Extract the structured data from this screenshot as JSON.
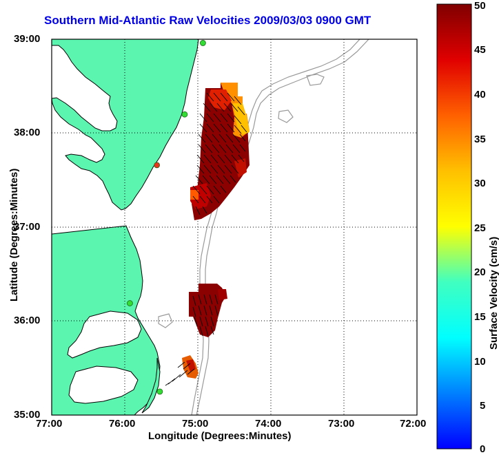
{
  "title": "Southern Mid-Atlantic Raw Velocities 2009/03/03 0900 GMT",
  "xlabel": "Longitude (Degrees:Minutes)",
  "ylabel": "Latitude (Degrees:Minutes)",
  "colorbar": {
    "label": "Surface Velocity (cm/s)",
    "min": 0,
    "max": 50,
    "ticks": [
      "0",
      "5",
      "10",
      "15",
      "20",
      "25",
      "30",
      "35",
      "40",
      "45",
      "50"
    ],
    "colormap": "jet"
  },
  "map": {
    "x_ticks": [
      "77:00",
      "76:00",
      "75:00",
      "74:00",
      "73:00",
      "72:00"
    ],
    "y_ticks": [
      "35:00",
      "36:00",
      "37:00",
      "38:00",
      "39:00"
    ],
    "lon_range": [
      -77,
      -72
    ],
    "lat_range": [
      35,
      39
    ],
    "grid": "dotted",
    "land_color": "#5cf5b0",
    "coast_color": "#000000",
    "bathymetry_color": "#999999",
    "site_markers": [
      {
        "lon": -74.93,
        "lat": 38.96,
        "color": "#33dd33"
      },
      {
        "lon": -75.18,
        "lat": 38.2,
        "color": "#33dd33"
      },
      {
        "lon": -75.56,
        "lat": 37.66,
        "color": "#e8341c"
      },
      {
        "lon": -75.93,
        "lat": 36.19,
        "color": "#33dd33"
      },
      {
        "lon": -75.52,
        "lat": 35.25,
        "color": "#33dd33"
      }
    ]
  }
}
